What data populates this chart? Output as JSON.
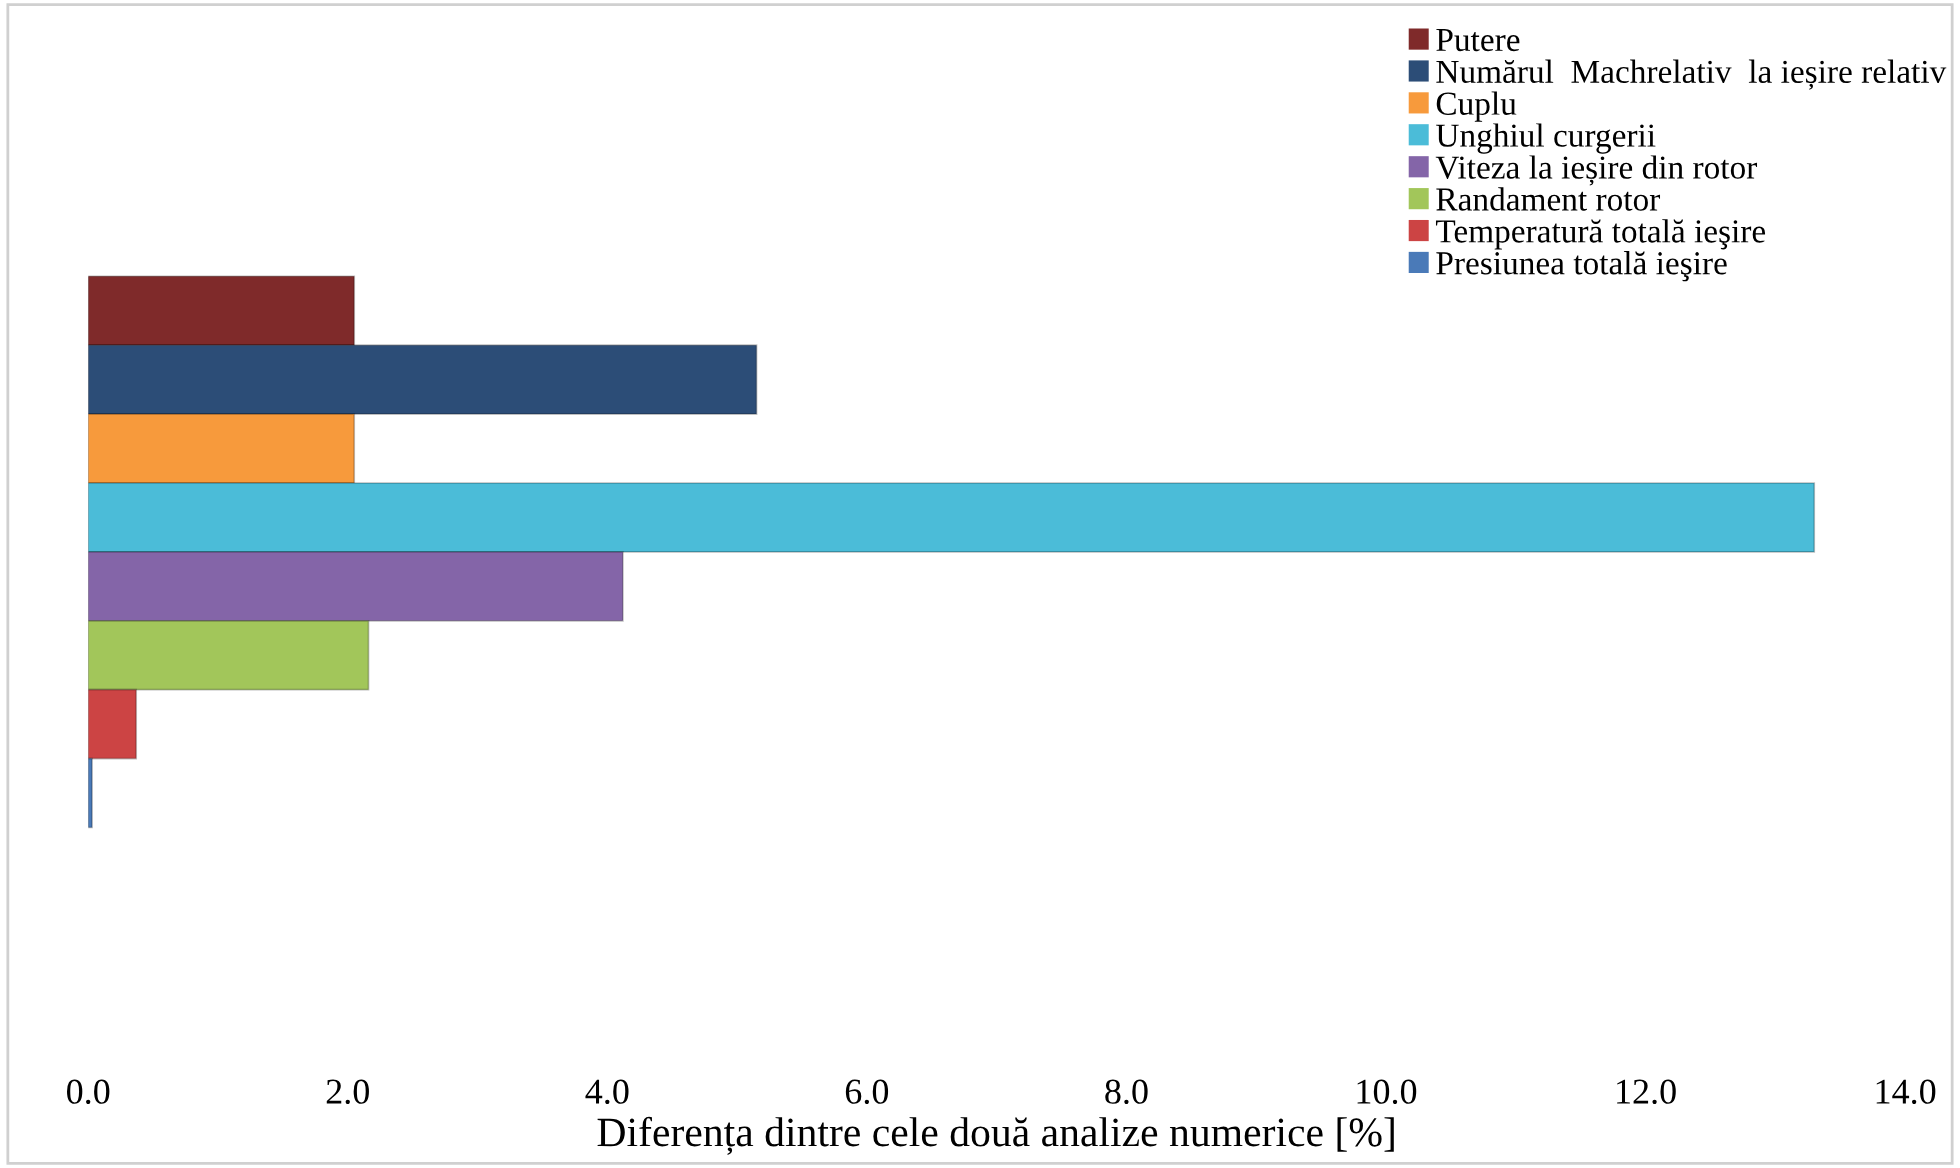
{
  "chart_data": {
    "type": "bar",
    "orientation": "horizontal",
    "categories": [
      null
    ],
    "series": [
      {
        "name": "Putere",
        "color": "#7f2a2a",
        "values": [
          2.05
        ]
      },
      {
        "name": "Numărul  Machrelativ  la ieșire relativ",
        "color": "#2c4d77",
        "values": [
          5.15
        ]
      },
      {
        "name": "Cuplu",
        "color": "#f79a3c",
        "values": [
          2.05
        ]
      },
      {
        "name": "Unghiul curgerii",
        "color": "#4bbcd8",
        "values": [
          13.3
        ]
      },
      {
        "name": "Viteza la ieșire din rotor",
        "color": "#8465a8",
        "values": [
          4.12
        ]
      },
      {
        "name": "Randament rotor",
        "color": "#a2c65a",
        "values": [
          2.16
        ]
      },
      {
        "name": "Temperatură totală ieşire",
        "color": "#cc4444",
        "values": [
          0.37
        ]
      },
      {
        "name": "Presiunea totală ieşire",
        "color": "#4a7ab8",
        "values": [
          0.03
        ]
      }
    ],
    "xlabel": "Diferența dintre cele două analize numerice [%]",
    "xlim": [
      0,
      14
    ],
    "xticks": [
      {
        "value": 0,
        "label": "0.0"
      },
      {
        "value": 2,
        "label": "2.0"
      },
      {
        "value": 4,
        "label": "4.0"
      },
      {
        "value": 6,
        "label": "6.0"
      },
      {
        "value": 8,
        "label": "8.0"
      },
      {
        "value": 10,
        "label": "10.0"
      },
      {
        "value": 12,
        "label": "12.0"
      },
      {
        "value": 14,
        "label": "14.0"
      }
    ],
    "tick_labels": "x",
    "grid": false,
    "legend": "top right"
  }
}
